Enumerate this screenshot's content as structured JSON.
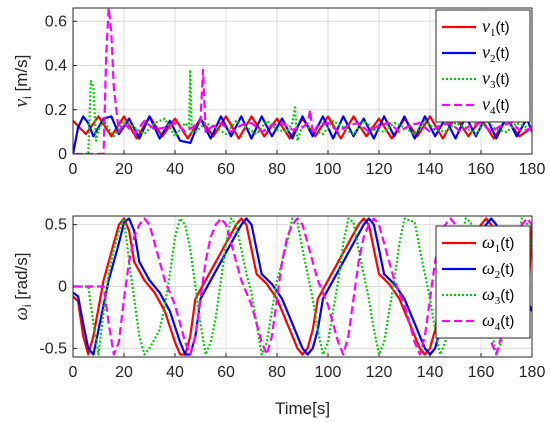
{
  "chart_data": [
    {
      "type": "line",
      "ylabel_symbol": "ν",
      "ylabel_sub": "i",
      "ylabel_unit": " [m/s]",
      "xlim": [
        0,
        180
      ],
      "ylim": [
        0,
        0.66
      ],
      "xticks": [
        "0",
        "20",
        "40",
        "60",
        "80",
        "100",
        "120",
        "140",
        "160",
        "180"
      ],
      "yticks": [
        "0",
        "0.2",
        "0.4",
        "0.6"
      ],
      "grid": true,
      "legend_placement": "top-right",
      "series": [
        {
          "symbol": "ν",
          "sub": "1",
          "suffix": "(t)",
          "color": "#ff0000",
          "dash": "solid",
          "x": [
            0,
            5,
            10,
            15,
            20,
            25,
            30,
            35,
            40,
            45,
            50,
            55,
            60,
            65,
            70,
            75,
            80,
            85,
            90,
            95,
            100,
            105,
            110,
            115,
            120,
            125,
            130,
            135,
            140,
            145,
            150,
            155,
            160,
            165,
            170,
            175,
            180
          ],
          "y": [
            0.15,
            0.09,
            0.17,
            0.08,
            0.17,
            0.07,
            0.17,
            0.08,
            0.16,
            0.07,
            0.16,
            0.08,
            0.17,
            0.07,
            0.17,
            0.08,
            0.16,
            0.07,
            0.16,
            0.08,
            0.17,
            0.07,
            0.17,
            0.08,
            0.16,
            0.07,
            0.16,
            0.08,
            0.17,
            0.07,
            0.17,
            0.08,
            0.16,
            0.07,
            0.16,
            0.08,
            0.12
          ]
        },
        {
          "symbol": "ν",
          "sub": "2",
          "suffix": "(t)",
          "color": "#0000ff",
          "dash": "solid",
          "x": [
            0,
            2,
            4,
            6,
            8,
            12,
            15,
            18,
            22,
            26,
            30,
            34,
            38,
            42,
            46,
            50,
            54,
            58,
            62,
            66,
            70,
            74,
            78,
            82,
            86,
            90,
            94,
            98,
            102,
            106,
            110,
            114,
            118,
            122,
            126,
            130,
            134,
            138,
            142,
            146,
            150,
            154,
            158,
            162,
            166,
            170,
            174,
            178,
            180
          ],
          "y": [
            0.0,
            0.12,
            0.17,
            0.14,
            0.08,
            0.16,
            0.17,
            0.09,
            0.16,
            0.07,
            0.17,
            0.07,
            0.15,
            0.06,
            0.05,
            0.16,
            0.07,
            0.17,
            0.08,
            0.17,
            0.07,
            0.17,
            0.08,
            0.16,
            0.07,
            0.17,
            0.08,
            0.17,
            0.07,
            0.17,
            0.08,
            0.16,
            0.07,
            0.17,
            0.08,
            0.17,
            0.07,
            0.17,
            0.08,
            0.16,
            0.07,
            0.17,
            0.08,
            0.17,
            0.07,
            0.17,
            0.08,
            0.16,
            0.1
          ]
        },
        {
          "symbol": "ν",
          "sub": "3",
          "suffix": "(t)",
          "color": "#00cc00",
          "dash": "dotted",
          "x": [
            0,
            6,
            7,
            8,
            9,
            10,
            12,
            16,
            20,
            24,
            28,
            32,
            36,
            40,
            44,
            45.5,
            46,
            46.5,
            48,
            52,
            56,
            60,
            64,
            68,
            72,
            76,
            80,
            84,
            86,
            87,
            88,
            90,
            94,
            98,
            102,
            106,
            110,
            114,
            118,
            122,
            126,
            130,
            134,
            138,
            142,
            146,
            150,
            154,
            158,
            162,
            166,
            170,
            174,
            178,
            180
          ],
          "y": [
            0.0,
            0.0,
            0.33,
            0.3,
            0.06,
            0.11,
            0.15,
            0.08,
            0.15,
            0.12,
            0.09,
            0.14,
            0.16,
            0.08,
            0.14,
            0.12,
            0.38,
            0.1,
            0.1,
            0.14,
            0.12,
            0.09,
            0.15,
            0.12,
            0.09,
            0.15,
            0.11,
            0.1,
            0.14,
            0.21,
            0.06,
            0.13,
            0.11,
            0.09,
            0.15,
            0.12,
            0.09,
            0.15,
            0.11,
            0.1,
            0.14,
            0.12,
            0.09,
            0.15,
            0.11,
            0.1,
            0.14,
            0.12,
            0.09,
            0.15,
            0.11,
            0.1,
            0.14,
            0.12,
            0.1
          ]
        },
        {
          "symbol": "ν",
          "sub": "4",
          "suffix": "(t)",
          "color": "#ff00ff",
          "dash": "dashed",
          "x": [
            0,
            12,
            13,
            14,
            15,
            16,
            18,
            20,
            24,
            28,
            32,
            36,
            40,
            44,
            48,
            50,
            51,
            52,
            54,
            58,
            62,
            66,
            70,
            74,
            78,
            82,
            86,
            90,
            92,
            93,
            94,
            96,
            100,
            104,
            108,
            112,
            116,
            120,
            124,
            128,
            132,
            136,
            140,
            144,
            148,
            152,
            156,
            160,
            164,
            168,
            172,
            176,
            180
          ],
          "y": [
            0.0,
            0.0,
            0.45,
            0.66,
            0.55,
            0.3,
            0.1,
            0.14,
            0.09,
            0.15,
            0.11,
            0.12,
            0.14,
            0.1,
            0.13,
            0.15,
            0.38,
            0.1,
            0.12,
            0.14,
            0.1,
            0.13,
            0.14,
            0.1,
            0.13,
            0.14,
            0.11,
            0.12,
            0.14,
            0.2,
            0.09,
            0.13,
            0.14,
            0.1,
            0.13,
            0.14,
            0.1,
            0.13,
            0.14,
            0.1,
            0.13,
            0.14,
            0.1,
            0.13,
            0.14,
            0.1,
            0.13,
            0.14,
            0.1,
            0.13,
            0.14,
            0.1,
            0.12
          ]
        }
      ]
    },
    {
      "type": "line",
      "ylabel_symbol": "ω",
      "ylabel_sub": "i",
      "ylabel_unit": " [rad/s]",
      "xlabel": "Time[s]",
      "xlim": [
        0,
        180
      ],
      "ylim": [
        -0.57,
        0.57
      ],
      "xticks": [
        "0",
        "20",
        "40",
        "60",
        "80",
        "100",
        "120",
        "140",
        "160",
        "180"
      ],
      "yticks": [
        "-0.5",
        "0",
        "0.5"
      ],
      "grid": true,
      "legend_placement": "right",
      "series": [
        {
          "symbol": "ω",
          "sub": "1",
          "suffix": "(t)",
          "color": "#ff0000",
          "dash": "solid",
          "x": [
            0,
            2,
            4,
            6,
            8,
            12,
            16,
            18,
            20,
            22,
            24,
            28,
            32,
            36,
            40,
            42,
            44,
            46,
            48,
            52,
            56,
            60,
            64,
            66,
            68,
            70,
            72,
            76,
            80,
            84,
            88,
            90,
            92,
            94,
            96,
            100,
            104,
            108,
            112,
            114,
            116,
            118,
            120,
            124,
            128,
            132,
            136,
            138,
            140,
            142,
            144,
            148,
            152,
            156,
            160,
            162,
            164,
            166,
            168,
            172,
            176,
            178,
            180
          ],
          "y": [
            -0.08,
            -0.12,
            -0.4,
            -0.55,
            -0.4,
            0.05,
            0.35,
            0.5,
            0.55,
            0.45,
            0.2,
            0.05,
            -0.05,
            -0.2,
            -0.45,
            -0.55,
            -0.55,
            -0.4,
            -0.1,
            0.05,
            0.2,
            0.35,
            0.5,
            0.55,
            0.5,
            0.3,
            0.1,
            0.02,
            -0.1,
            -0.3,
            -0.5,
            -0.55,
            -0.5,
            -0.35,
            -0.1,
            0.05,
            0.2,
            0.35,
            0.5,
            0.55,
            0.5,
            0.3,
            0.1,
            0.02,
            -0.1,
            -0.3,
            -0.5,
            -0.55,
            -0.5,
            -0.35,
            -0.1,
            0.05,
            0.2,
            0.35,
            0.5,
            0.55,
            0.5,
            0.3,
            0.1,
            0.02,
            -0.1,
            -0.3,
            0.5
          ]
        },
        {
          "symbol": "ω",
          "sub": "2",
          "suffix": "(t)",
          "color": "#0000ff",
          "dash": "solid",
          "x": [
            0,
            2,
            4,
            6,
            8,
            10,
            14,
            18,
            20,
            22,
            24,
            26,
            30,
            34,
            38,
            42,
            44,
            46,
            48,
            50,
            54,
            58,
            62,
            66,
            68,
            70,
            72,
            74,
            78,
            82,
            86,
            90,
            92,
            94,
            96,
            98,
            102,
            106,
            110,
            114,
            116,
            118,
            120,
            122,
            126,
            130,
            134,
            138,
            140,
            142,
            144,
            146,
            150,
            154,
            158,
            162,
            164,
            166,
            168,
            170,
            174,
            178,
            180
          ],
          "y": [
            -0.05,
            -0.08,
            -0.3,
            -0.5,
            -0.55,
            -0.35,
            0.05,
            0.35,
            0.52,
            0.55,
            0.45,
            0.2,
            0.05,
            -0.05,
            -0.2,
            -0.45,
            -0.55,
            -0.55,
            -0.4,
            -0.1,
            0.05,
            0.2,
            0.35,
            0.5,
            0.55,
            0.5,
            0.3,
            0.1,
            0.02,
            -0.1,
            -0.3,
            -0.5,
            -0.55,
            -0.5,
            -0.35,
            -0.1,
            0.05,
            0.2,
            0.35,
            0.5,
            0.55,
            0.5,
            0.3,
            0.1,
            0.02,
            -0.1,
            -0.3,
            -0.5,
            -0.55,
            -0.5,
            -0.35,
            -0.1,
            0.05,
            0.2,
            0.35,
            0.5,
            0.55,
            0.5,
            0.3,
            0.1,
            0.02,
            -0.1,
            -0.2
          ]
        },
        {
          "symbol": "ω",
          "sub": "3",
          "suffix": "(t)",
          "color": "#00cc00",
          "dash": "dotted",
          "x": [
            0,
            6,
            8,
            10,
            12,
            14,
            16,
            18,
            20,
            22,
            24,
            26,
            28,
            30,
            34,
            36,
            38,
            40,
            42,
            44,
            46,
            48,
            50,
            52,
            54,
            56,
            58,
            60,
            62,
            64,
            66,
            68,
            70,
            72,
            74,
            76,
            78,
            80,
            84,
            86,
            88,
            90,
            92,
            94,
            96,
            98,
            100,
            102,
            104,
            106,
            108,
            110,
            112,
            114,
            116,
            118,
            120,
            122,
            124,
            126,
            128,
            130,
            134,
            136,
            138,
            140,
            142,
            144,
            146,
            148,
            150,
            152,
            154,
            156,
            158,
            160,
            162,
            164,
            166,
            168,
            170,
            172,
            174,
            176,
            178,
            180
          ],
          "y": [
            0.0,
            0.0,
            -0.3,
            -0.55,
            -0.2,
            0.1,
            0.3,
            0.45,
            0.55,
            0.2,
            -0.1,
            -0.4,
            -0.55,
            -0.5,
            -0.35,
            -0.15,
            0.1,
            0.4,
            0.55,
            0.5,
            0.3,
            0.0,
            -0.3,
            -0.55,
            -0.45,
            -0.25,
            0.05,
            0.35,
            0.55,
            0.5,
            0.3,
            0.1,
            -0.05,
            -0.3,
            -0.55,
            -0.45,
            -0.2,
            0.05,
            0.35,
            0.55,
            0.52,
            0.3,
            0.1,
            -0.1,
            -0.35,
            -0.55,
            -0.45,
            -0.2,
            0.05,
            0.35,
            0.55,
            0.52,
            0.3,
            0.1,
            -0.1,
            -0.35,
            -0.55,
            -0.45,
            -0.2,
            0.05,
            0.35,
            0.55,
            0.52,
            0.3,
            0.1,
            -0.1,
            -0.35,
            -0.55,
            -0.45,
            -0.2,
            0.05,
            0.35,
            0.55,
            0.52,
            0.3,
            0.1,
            -0.1,
            -0.35,
            -0.55,
            -0.45,
            -0.2,
            0.05,
            0.35,
            0.55,
            0.52,
            0.3
          ]
        },
        {
          "symbol": "ω",
          "sub": "4",
          "suffix": "(t)",
          "color": "#ff00ff",
          "dash": "dashed",
          "x": [
            0,
            12,
            14,
            16,
            18,
            20,
            22,
            24,
            26,
            28,
            30,
            32,
            34,
            36,
            38,
            40,
            42,
            44,
            46,
            48,
            50,
            52,
            54,
            56,
            58,
            60,
            62,
            64,
            66,
            68,
            70,
            72,
            74,
            76,
            78,
            80,
            82,
            84,
            86,
            88,
            90,
            92,
            94,
            96,
            98,
            100,
            102,
            104,
            106,
            108,
            110,
            112,
            114,
            116,
            118,
            120,
            122,
            124,
            126,
            128,
            130,
            132,
            134,
            136,
            138,
            140,
            142,
            144,
            146,
            148,
            150,
            152,
            154,
            156,
            158,
            160,
            162,
            164,
            166,
            168,
            170,
            172,
            174,
            176,
            178,
            180
          ],
          "y": [
            0.0,
            0.0,
            -0.3,
            -0.55,
            -0.45,
            -0.1,
            0.2,
            0.4,
            0.5,
            0.55,
            0.5,
            0.35,
            0.2,
            0.05,
            -0.05,
            -0.15,
            -0.3,
            -0.45,
            -0.55,
            -0.4,
            -0.1,
            0.2,
            0.4,
            0.5,
            0.55,
            0.5,
            0.35,
            0.2,
            0.05,
            -0.05,
            -0.15,
            -0.3,
            -0.45,
            -0.55,
            -0.4,
            -0.1,
            0.2,
            0.4,
            0.5,
            0.55,
            0.5,
            0.35,
            0.2,
            0.05,
            -0.05,
            -0.15,
            -0.3,
            -0.45,
            -0.55,
            -0.4,
            -0.1,
            0.2,
            0.4,
            0.5,
            0.55,
            0.5,
            0.35,
            0.2,
            0.05,
            -0.05,
            -0.15,
            -0.3,
            -0.45,
            -0.55,
            -0.4,
            -0.1,
            0.2,
            0.4,
            0.5,
            0.55,
            0.5,
            0.35,
            0.2,
            0.05,
            -0.05,
            -0.15,
            -0.3,
            -0.45,
            -0.55,
            -0.4,
            -0.1,
            0.2,
            0.4,
            0.5,
            0.55,
            0.5
          ]
        }
      ]
    }
  ]
}
